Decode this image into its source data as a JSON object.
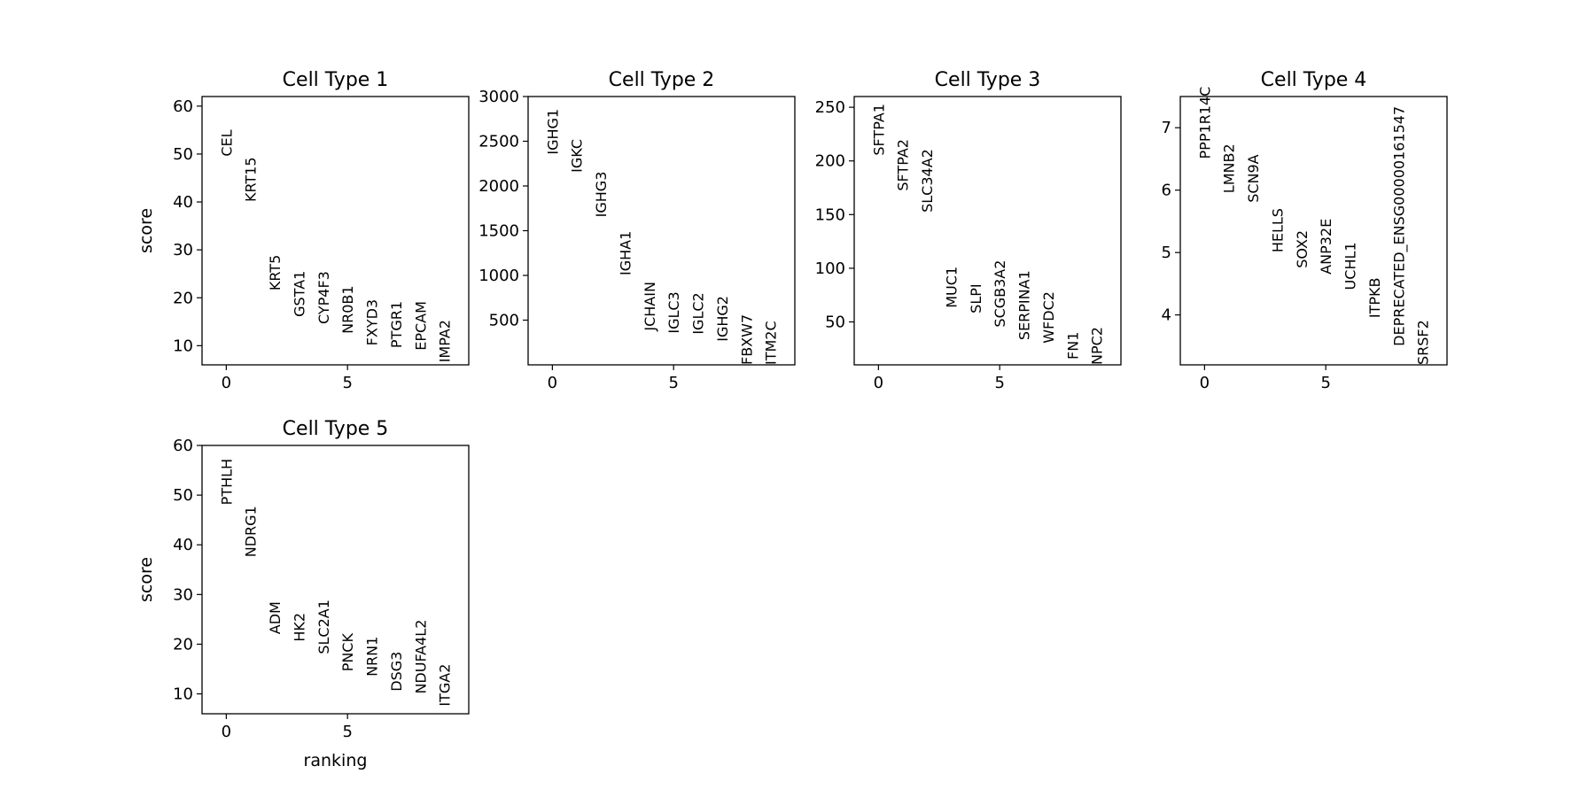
{
  "figure": {
    "ylabel": "score",
    "xlabel": "ranking"
  },
  "chart_data": [
    {
      "type": "scatter",
      "title": "Cell Type 1",
      "ylabel": "score",
      "xlabel": "",
      "xlim": [
        -1,
        10
      ],
      "ylim": [
        6,
        62
      ],
      "xticks": [
        0,
        5
      ],
      "yticks": [
        10,
        20,
        30,
        40,
        50,
        60
      ],
      "points": [
        {
          "x": 0,
          "y": 49.5,
          "label": "CEL"
        },
        {
          "x": 1,
          "y": 40.0,
          "label": "KRT15"
        },
        {
          "x": 2,
          "y": 21.5,
          "label": "KRT5"
        },
        {
          "x": 3,
          "y": 16.0,
          "label": "GSTA1"
        },
        {
          "x": 4,
          "y": 14.5,
          "label": "CYP4F3"
        },
        {
          "x": 5,
          "y": 12.5,
          "label": "NR0B1"
        },
        {
          "x": 6,
          "y": 10.0,
          "label": "FXYD3"
        },
        {
          "x": 7,
          "y": 9.5,
          "label": "PTGR1"
        },
        {
          "x": 8,
          "y": 9.0,
          "label": "EPCAM"
        },
        {
          "x": 9,
          "y": 6.5,
          "label": "IMPA2"
        }
      ]
    },
    {
      "type": "scatter",
      "title": "Cell Type 2",
      "ylabel": "",
      "xlabel": "",
      "xlim": [
        -1,
        10
      ],
      "ylim": [
        0,
        3000
      ],
      "xticks": [
        0,
        5
      ],
      "yticks": [
        500,
        1000,
        1500,
        2000,
        2500,
        3000
      ],
      "points": [
        {
          "x": 0,
          "y": 2350,
          "label": "IGHG1"
        },
        {
          "x": 1,
          "y": 2150,
          "label": "IGKC"
        },
        {
          "x": 2,
          "y": 1650,
          "label": "IGHG3"
        },
        {
          "x": 3,
          "y": 1000,
          "label": "IGHA1"
        },
        {
          "x": 4,
          "y": 380,
          "label": "JCHAIN"
        },
        {
          "x": 5,
          "y": 350,
          "label": "IGLC3"
        },
        {
          "x": 6,
          "y": 340,
          "label": "IGLC2"
        },
        {
          "x": 7,
          "y": 260,
          "label": "IGHG2"
        },
        {
          "x": 8,
          "y": 0,
          "label": "FBXW7"
        },
        {
          "x": 9,
          "y": 0,
          "label": "ITM2C"
        }
      ]
    },
    {
      "type": "scatter",
      "title": "Cell Type 3",
      "ylabel": "",
      "xlabel": "",
      "xlim": [
        -1,
        10
      ],
      "ylim": [
        10,
        260
      ],
      "xticks": [
        0,
        5
      ],
      "yticks": [
        50,
        100,
        150,
        200,
        250
      ],
      "points": [
        {
          "x": 0,
          "y": 205,
          "label": "SFTPA1"
        },
        {
          "x": 1,
          "y": 172,
          "label": "SFTPA2"
        },
        {
          "x": 2,
          "y": 152,
          "label": "SLC34A2"
        },
        {
          "x": 3,
          "y": 63,
          "label": "MUC1"
        },
        {
          "x": 4,
          "y": 58,
          "label": "SLPI"
        },
        {
          "x": 5,
          "y": 45,
          "label": "SCGB3A2"
        },
        {
          "x": 6,
          "y": 33,
          "label": "SERPINA1"
        },
        {
          "x": 7,
          "y": 30,
          "label": "WFDC2"
        },
        {
          "x": 8,
          "y": 15,
          "label": "FN1"
        },
        {
          "x": 9,
          "y": 10,
          "label": "NPC2"
        }
      ]
    },
    {
      "type": "scatter",
      "title": "Cell Type 4",
      "ylabel": "",
      "xlabel": "",
      "xlim": [
        -1,
        10
      ],
      "ylim": [
        3.2,
        7.5
      ],
      "xticks": [
        0,
        5
      ],
      "yticks": [
        4,
        5,
        6,
        7
      ],
      "points": [
        {
          "x": 0,
          "y": 6.5,
          "label": "PPP1R14C"
        },
        {
          "x": 1,
          "y": 5.95,
          "label": "LMNB2"
        },
        {
          "x": 2,
          "y": 5.8,
          "label": "SCN9A"
        },
        {
          "x": 3,
          "y": 5.0,
          "label": "HELLS"
        },
        {
          "x": 4,
          "y": 4.75,
          "label": "SOX2"
        },
        {
          "x": 5,
          "y": 4.65,
          "label": "ANP32E"
        },
        {
          "x": 6,
          "y": 4.4,
          "label": "UCHL1"
        },
        {
          "x": 7,
          "y": 3.95,
          "label": "ITPKB"
        },
        {
          "x": 8,
          "y": 3.5,
          "label": "DEPRECATED_ENSG00000161547"
        },
        {
          "x": 9,
          "y": 3.2,
          "label": "SRSF2"
        }
      ]
    },
    {
      "type": "scatter",
      "title": "Cell Type 5",
      "ylabel": "score",
      "xlabel": "ranking",
      "xlim": [
        -1,
        10
      ],
      "ylim": [
        6,
        60
      ],
      "xticks": [
        0,
        5
      ],
      "yticks": [
        10,
        20,
        30,
        40,
        50,
        60
      ],
      "points": [
        {
          "x": 0,
          "y": 48.0,
          "label": "PTHLH"
        },
        {
          "x": 1,
          "y": 37.5,
          "label": "NDRG1"
        },
        {
          "x": 2,
          "y": 22.0,
          "label": "ADM"
        },
        {
          "x": 3,
          "y": 20.5,
          "label": "HK2"
        },
        {
          "x": 4,
          "y": 18.0,
          "label": "SLC2A1"
        },
        {
          "x": 5,
          "y": 14.5,
          "label": "PNCK"
        },
        {
          "x": 6,
          "y": 13.5,
          "label": "NRN1"
        },
        {
          "x": 7,
          "y": 10.5,
          "label": "DSG3"
        },
        {
          "x": 8,
          "y": 10.0,
          "label": "NDUFA4L2"
        },
        {
          "x": 9,
          "y": 7.5,
          "label": "ITGA2"
        }
      ]
    }
  ]
}
